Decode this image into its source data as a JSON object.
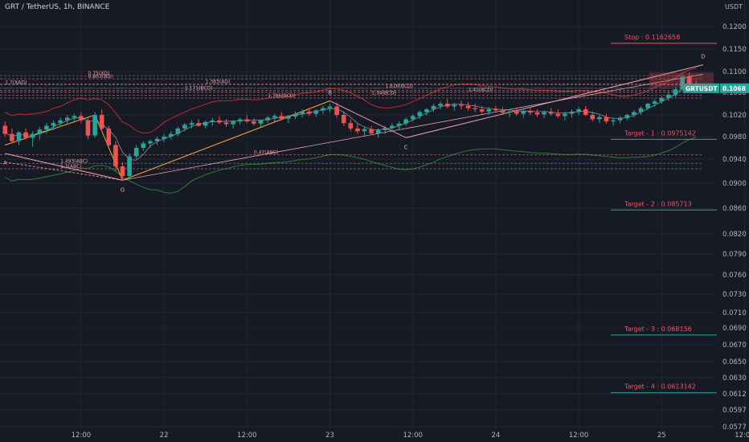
{
  "header": {
    "title": "GRT / TetherUS, 1h, BINANCE",
    "currency": "USDT"
  },
  "symbol_tag": {
    "label": "GRTUSDT",
    "price": "0.1068",
    "color": "#26a69a"
  },
  "chart_data": {
    "type": "candlestick",
    "ylim": [
      0.0577,
      0.1225
    ],
    "xlim": [
      "2021-01-21 01:00",
      "2021-01-25 23:00"
    ],
    "y_ticks": [
      "0.1200",
      "0.1150",
      "0.1100",
      "0.1060",
      "0.1020",
      "0.0980",
      "0.0940",
      "0.0900",
      "0.0860",
      "0.0820",
      "0.0790",
      "0.0760",
      "0.0730",
      "0.0710",
      "0.0690",
      "0.0670",
      "0.0650",
      "0.0630",
      "0.0612",
      "0.0597",
      "0.0577"
    ],
    "x_ticks": [
      {
        "label": "12:00",
        "t": 11
      },
      {
        "label": "22",
        "t": 23
      },
      {
        "label": "12:00",
        "t": 35
      },
      {
        "label": "23",
        "t": 47
      },
      {
        "label": "12:00",
        "t": 59
      },
      {
        "label": "24",
        "t": 71
      },
      {
        "label": "12:00",
        "t": 83
      },
      {
        "label": "25",
        "t": 95
      },
      {
        "label": "12:00",
        "t": 107
      }
    ],
    "candles": [
      [
        0.1,
        0.1008,
        0.098,
        0.0985
      ],
      [
        0.0985,
        0.0995,
        0.0968,
        0.0972
      ],
      [
        0.0972,
        0.099,
        0.0965,
        0.0988
      ],
      [
        0.0988,
        0.0995,
        0.0975,
        0.0978
      ],
      [
        0.0978,
        0.099,
        0.0962,
        0.0985
      ],
      [
        0.0985,
        0.0998,
        0.0975,
        0.0993
      ],
      [
        0.0993,
        0.1005,
        0.0985,
        0.1
      ],
      [
        0.1,
        0.101,
        0.0992,
        0.1005
      ],
      [
        0.1005,
        0.1015,
        0.0998,
        0.101
      ],
      [
        0.101,
        0.102,
        0.1002,
        0.1015
      ],
      [
        0.1015,
        0.1022,
        0.1008,
        0.1018
      ],
      [
        0.1018,
        0.1025,
        0.1005,
        0.101
      ],
      [
        0.101,
        0.1015,
        0.0975,
        0.0982
      ],
      [
        0.0982,
        0.1025,
        0.0978,
        0.102
      ],
      [
        0.102,
        0.103,
        0.099,
        0.0995
      ],
      [
        0.0995,
        0.1,
        0.096,
        0.0965
      ],
      [
        0.0965,
        0.0972,
        0.092,
        0.0928
      ],
      [
        0.0928,
        0.0935,
        0.0905,
        0.0912
      ],
      [
        0.0912,
        0.095,
        0.0908,
        0.0945
      ],
      [
        0.0945,
        0.0965,
        0.094,
        0.096
      ],
      [
        0.096,
        0.0972,
        0.0955,
        0.0968
      ],
      [
        0.0968,
        0.0975,
        0.096,
        0.0972
      ],
      [
        0.0972,
        0.098,
        0.0965,
        0.0976
      ],
      [
        0.0976,
        0.0985,
        0.097,
        0.098
      ],
      [
        0.098,
        0.099,
        0.0975,
        0.0985
      ],
      [
        0.0985,
        0.0998,
        0.098,
        0.0995
      ],
      [
        0.0995,
        0.1005,
        0.099,
        0.1002
      ],
      [
        0.1002,
        0.101,
        0.0995,
        0.1005
      ],
      [
        0.1005,
        0.1012,
        0.0998,
        0.1
      ],
      [
        0.1,
        0.101,
        0.0995,
        0.1007
      ],
      [
        0.1007,
        0.1015,
        0.1,
        0.101
      ],
      [
        0.101,
        0.1018,
        0.1003,
        0.1006
      ],
      [
        0.1006,
        0.1012,
        0.0998,
        0.1003
      ],
      [
        0.1003,
        0.101,
        0.0995,
        0.1008
      ],
      [
        0.1008,
        0.1015,
        0.1002,
        0.1012
      ],
      [
        0.1012,
        0.102,
        0.1005,
        0.1008
      ],
      [
        0.1008,
        0.1014,
        0.1,
        0.1004
      ],
      [
        0.1004,
        0.1012,
        0.0998,
        0.101
      ],
      [
        0.101,
        0.1018,
        0.1005,
        0.1015
      ],
      [
        0.1015,
        0.1022,
        0.1008,
        0.1018
      ],
      [
        0.1018,
        0.1025,
        0.101,
        0.1013
      ],
      [
        0.1013,
        0.102,
        0.1005,
        0.1017
      ],
      [
        0.1017,
        0.1026,
        0.1012,
        0.1022
      ],
      [
        0.1022,
        0.103,
        0.1015,
        0.1026
      ],
      [
        0.1026,
        0.1032,
        0.1018,
        0.1022
      ],
      [
        0.1022,
        0.103,
        0.1016,
        0.1028
      ],
      [
        0.1028,
        0.1036,
        0.1022,
        0.1032
      ],
      [
        0.1032,
        0.104,
        0.1025,
        0.1035
      ],
      [
        0.1035,
        0.1042,
        0.1015,
        0.102
      ],
      [
        0.102,
        0.1026,
        0.1,
        0.1005
      ],
      [
        0.1005,
        0.1012,
        0.099,
        0.0995
      ],
      [
        0.0995,
        0.1003,
        0.0985,
        0.099
      ],
      [
        0.099,
        0.0998,
        0.098,
        0.0994
      ],
      [
        0.0994,
        0.1,
        0.0982,
        0.0986
      ],
      [
        0.0986,
        0.0995,
        0.0978,
        0.0992
      ],
      [
        0.0992,
        0.1,
        0.0985,
        0.0996
      ],
      [
        0.0996,
        0.1005,
        0.099,
        0.1
      ],
      [
        0.1,
        0.1008,
        0.0993,
        0.1004
      ],
      [
        0.1004,
        0.1015,
        0.1,
        0.1012
      ],
      [
        0.1012,
        0.1022,
        0.1008,
        0.1018
      ],
      [
        0.1018,
        0.1028,
        0.1012,
        0.1025
      ],
      [
        0.1025,
        0.1032,
        0.1018,
        0.103
      ],
      [
        0.103,
        0.104,
        0.1025,
        0.1036
      ],
      [
        0.1036,
        0.1044,
        0.103,
        0.104
      ],
      [
        0.104,
        0.1048,
        0.1032,
        0.1035
      ],
      [
        0.1035,
        0.1042,
        0.1028,
        0.1038
      ],
      [
        0.1038,
        0.1045,
        0.103,
        0.1036
      ],
      [
        0.1036,
        0.1043,
        0.1028,
        0.1032
      ],
      [
        0.1032,
        0.104,
        0.1025,
        0.103
      ],
      [
        0.103,
        0.1036,
        0.1022,
        0.1026
      ],
      [
        0.1026,
        0.1034,
        0.102,
        0.103
      ],
      [
        0.103,
        0.1036,
        0.1024,
        0.1028
      ],
      [
        0.1028,
        0.1034,
        0.102,
        0.1024
      ],
      [
        0.1024,
        0.103,
        0.1016,
        0.1026
      ],
      [
        0.1026,
        0.1032,
        0.1018,
        0.1022
      ],
      [
        0.1022,
        0.103,
        0.1015,
        0.1027
      ],
      [
        0.1027,
        0.1034,
        0.102,
        0.1024
      ],
      [
        0.1024,
        0.103,
        0.1016,
        0.1021
      ],
      [
        0.1021,
        0.1028,
        0.1014,
        0.1025
      ],
      [
        0.1025,
        0.1032,
        0.1018,
        0.1022
      ],
      [
        0.1022,
        0.103,
        0.1014,
        0.1018
      ],
      [
        0.1018,
        0.1026,
        0.101,
        0.1022
      ],
      [
        0.1022,
        0.103,
        0.1015,
        0.1026
      ],
      [
        0.1026,
        0.1034,
        0.102,
        0.103
      ],
      [
        0.103,
        0.1036,
        0.1018,
        0.102
      ],
      [
        0.102,
        0.1026,
        0.1008,
        0.1012
      ],
      [
        0.1012,
        0.102,
        0.1005,
        0.1016
      ],
      [
        0.1016,
        0.1022,
        0.1004,
        0.1008
      ],
      [
        0.1008,
        0.1015,
        0.1,
        0.101
      ],
      [
        0.101,
        0.1018,
        0.1004,
        0.1014
      ],
      [
        0.1014,
        0.1022,
        0.101,
        0.102
      ],
      [
        0.102,
        0.1028,
        0.1015,
        0.1025
      ],
      [
        0.1025,
        0.1035,
        0.102,
        0.1032
      ],
      [
        0.1032,
        0.1042,
        0.1028,
        0.104
      ],
      [
        0.104,
        0.1048,
        0.1035,
        0.1044
      ],
      [
        0.1044,
        0.1054,
        0.104,
        0.105
      ],
      [
        0.105,
        0.106,
        0.1045,
        0.1056
      ],
      [
        0.1056,
        0.107,
        0.1052,
        0.1066
      ],
      [
        0.1066,
        0.1095,
        0.1062,
        0.109
      ],
      [
        0.109,
        0.1098,
        0.107,
        0.1075
      ],
      [
        0.1075,
        0.1082,
        0.1064,
        0.1068
      ]
    ],
    "targets": [
      {
        "label": "Stop : 0.1162658",
        "value": 0.1162658,
        "color": "#f7525f"
      },
      {
        "label": "Target - 1 : 0.0975142",
        "value": 0.0975142,
        "color": "#f0a0a8"
      },
      {
        "label": "Target - 2 : 0.085713",
        "value": 0.085713,
        "color": "#f0a0a8"
      },
      {
        "label": "Target - 3 : 0.068156",
        "value": 0.068156,
        "color": "#f0a0a8"
      },
      {
        "label": "Target - 4 : 0.0613142",
        "value": 0.0613142,
        "color": "#f0a0a8"
      }
    ],
    "pattern_points": [
      {
        "label": "A",
        "t": 0,
        "v": 0.095
      },
      {
        "label": "B",
        "t": 47,
        "v": 0.1045
      },
      {
        "label": "C",
        "t": 58,
        "v": 0.0978
      },
      {
        "label": "D",
        "t": 101,
        "v": 0.1115
      },
      {
        "label": "G",
        "t": 17,
        "v": 0.0905
      }
    ],
    "fib_labels": [
      {
        "text": "0.75(XD)",
        "t": 12,
        "v": 0.1092
      },
      {
        "text": "0.803(BD)",
        "t": 12,
        "v": 0.1086
      },
      {
        "text": "1.363(AD)",
        "t": 29,
        "v": 0.1076
      },
      {
        "text": "1.171(BCD)",
        "t": 26,
        "v": 0.1064
      },
      {
        "text": "1.786(BCD)",
        "t": 38,
        "v": 0.105
      },
      {
        "text": "1.616(BCD)",
        "t": 55,
        "v": 0.1068
      },
      {
        "text": "1.41(BCD)",
        "t": 67,
        "v": 0.1061
      },
      {
        "text": "1.34(BCD)",
        "t": 53,
        "v": 0.1055
      },
      {
        "text": "1.493(ABC)",
        "t": 8,
        "v": 0.0933
      },
      {
        "text": "1.3(ABC)",
        "t": 8,
        "v": 0.0924
      },
      {
        "text": "0.47(ABC)",
        "t": 36,
        "v": 0.0948
      },
      {
        "text": "1.7(XAD)",
        "t": 0,
        "v": 0.1075
      }
    ],
    "fill_color_up": "#26a69a",
    "fill_color_down": "#ef5350"
  }
}
